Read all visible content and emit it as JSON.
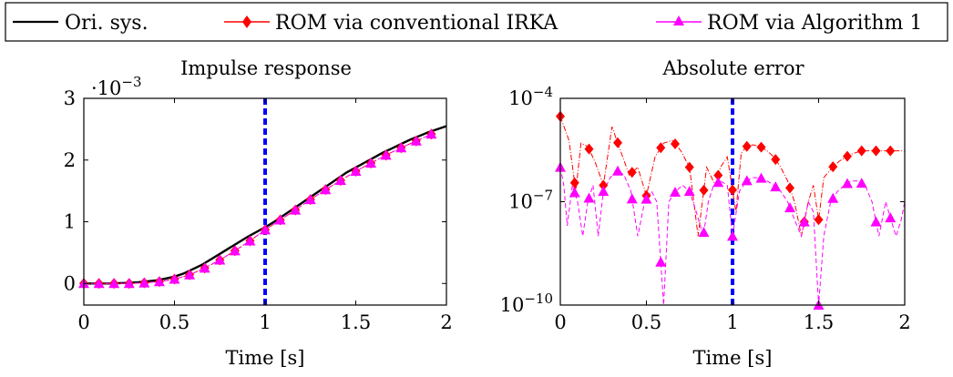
{
  "legend": {
    "entries": [
      {
        "label": "Ori. sys.",
        "color": "#000000",
        "marker": "none",
        "style": "solid"
      },
      {
        "label": "ROM via conventional IRKA",
        "color": "#ff0000",
        "marker": "diamond",
        "style": "dashdot"
      },
      {
        "label": "ROM via Algorithm 1",
        "color": "#ff00ff",
        "marker": "triangle",
        "style": "dashed"
      }
    ]
  },
  "chart_data": [
    {
      "type": "line",
      "title": "Impulse response",
      "xlabel": "Time [s]",
      "ylabel": "",
      "y_scale_factor": "·10",
      "y_scale_exponent": "−3",
      "xlim": [
        0,
        2
      ],
      "ylim": [
        -0.35,
        3
      ],
      "xticks": [
        0,
        0.5,
        1,
        1.5,
        2
      ],
      "xtick_labels": [
        "0",
        "0.5",
        "1",
        "1.5",
        "2"
      ],
      "yticks": [
        0,
        1,
        2,
        3
      ],
      "ytick_labels": [
        "0",
        "1",
        "2",
        "3"
      ],
      "vline": {
        "x": 1,
        "color": "#0000ff"
      },
      "series": [
        {
          "name": "Ori. sys.",
          "color": "#000000",
          "x": [
            0,
            0.05,
            0.1,
            0.15,
            0.2,
            0.25,
            0.3,
            0.35,
            0.4,
            0.45,
            0.5,
            0.55,
            0.6,
            0.65,
            0.7,
            0.75,
            0.8,
            0.85,
            0.9,
            0.95,
            1.0,
            1.05,
            1.1,
            1.15,
            1.2,
            1.25,
            1.3,
            1.35,
            1.4,
            1.45,
            1.5,
            1.55,
            1.6,
            1.65,
            1.7,
            1.75,
            1.8,
            1.85,
            1.9,
            1.95,
            2.0
          ],
          "y": [
            0,
            0,
            0,
            0,
            0.005,
            0.01,
            0.02,
            0.035,
            0.05,
            0.08,
            0.11,
            0.16,
            0.23,
            0.3,
            0.39,
            0.48,
            0.57,
            0.66,
            0.75,
            0.83,
            0.91,
            1.0,
            1.1,
            1.2,
            1.3,
            1.4,
            1.5,
            1.6,
            1.7,
            1.8,
            1.88,
            1.96,
            2.04,
            2.12,
            2.19,
            2.26,
            2.33,
            2.39,
            2.45,
            2.5,
            2.55
          ]
        },
        {
          "name": "ROM via conventional IRKA",
          "color": "#ff0000",
          "x": [
            0,
            0.0833,
            0.1667,
            0.25,
            0.3333,
            0.4167,
            0.5,
            0.5833,
            0.6667,
            0.75,
            0.8333,
            0.9167,
            1.0,
            1.0833,
            1.1667,
            1.25,
            1.3333,
            1.4167,
            1.5,
            1.5833,
            1.6667,
            1.75,
            1.8333,
            1.9167
          ],
          "y": [
            0,
            0,
            0,
            0,
            0.01,
            0.03,
            0.07,
            0.14,
            0.25,
            0.38,
            0.53,
            0.69,
            0.87,
            1.03,
            1.19,
            1.36,
            1.52,
            1.67,
            1.82,
            1.95,
            2.08,
            2.2,
            2.31,
            2.42
          ]
        },
        {
          "name": "ROM via Algorithm 1",
          "color": "#ff00ff",
          "x": [
            0,
            0.0833,
            0.1667,
            0.25,
            0.3333,
            0.4167,
            0.5,
            0.5833,
            0.6667,
            0.75,
            0.8333,
            0.9167,
            1.0,
            1.0833,
            1.1667,
            1.25,
            1.3333,
            1.4167,
            1.5,
            1.5833,
            1.6667,
            1.75,
            1.8333,
            1.9167
          ],
          "y": [
            0,
            0,
            0,
            0,
            0.01,
            0.03,
            0.07,
            0.14,
            0.25,
            0.38,
            0.53,
            0.69,
            0.87,
            1.03,
            1.19,
            1.36,
            1.52,
            1.67,
            1.82,
            1.95,
            2.08,
            2.2,
            2.31,
            2.42
          ]
        }
      ]
    },
    {
      "type": "line",
      "title": "Absolute error",
      "xlabel": "Time [s]",
      "ylabel": "",
      "y_scale": "log",
      "xlim": [
        0,
        2
      ],
      "ylim": [
        1e-10,
        0.0001
      ],
      "xticks": [
        0,
        0.5,
        1,
        1.5,
        2
      ],
      "xtick_labels": [
        "0",
        "0.5",
        "1",
        "1.5",
        "2"
      ],
      "yticks": [
        1e-10,
        1e-07,
        0.0001
      ],
      "ytick_bases": [
        "10",
        "10",
        "10"
      ],
      "ytick_exponents": [
        "−10",
        "−7",
        "−4"
      ],
      "vline": {
        "x": 1,
        "color": "#0000ff"
      },
      "series": [
        {
          "name": "ROM via conventional IRKA",
          "color": "#ff0000",
          "x": [
            0,
            0.05,
            0.09,
            0.12,
            0.16,
            0.2,
            0.25,
            0.3,
            0.35,
            0.4,
            0.45,
            0.5,
            0.55,
            0.6,
            0.65,
            0.7,
            0.75,
            0.8,
            0.85,
            0.9,
            0.93,
            0.97,
            1.02,
            1.05,
            1.08,
            1.12,
            1.16,
            1.2,
            1.24,
            1.28,
            1.32,
            1.36,
            1.4,
            1.44,
            1.47,
            1.5,
            1.53,
            1.58,
            1.62,
            1.66,
            1.7,
            1.75,
            1.8,
            1.85,
            1.9,
            1.95,
            2.0
          ],
          "y": [
            3e-05,
            6e-06,
            2e-07,
            5e-06,
            4e-06,
            1.5e-06,
            3e-07,
            1.5e-05,
            3e-06,
            6e-07,
            1e-06,
            1.5e-07,
            2e-06,
            5e-06,
            6e-06,
            3e-06,
            1e-06,
            1e-08,
            1e-06,
            3e-07,
            1e-06,
            2e-06,
            5e-08,
            2.5e-06,
            4e-06,
            4.5e-06,
            4e-06,
            3e-06,
            2e-06,
            1e-06,
            4e-07,
            1e-07,
            1e-08,
            1e-07,
            3e-07,
            3e-08,
            5e-07,
            1e-06,
            1.5e-06,
            2e-06,
            2.5e-06,
            3e-06,
            3e-06,
            3e-06,
            3e-06,
            3e-06,
            3e-06
          ]
        },
        {
          "name": "ROM via Algorithm 1",
          "color": "#ff00ff",
          "x": [
            0,
            0.02,
            0.04,
            0.07,
            0.1,
            0.13,
            0.16,
            0.19,
            0.22,
            0.25,
            0.29,
            0.33,
            0.37,
            0.41,
            0.45,
            0.49,
            0.53,
            0.56,
            0.6,
            0.63,
            0.67,
            0.71,
            0.75,
            0.79,
            0.83,
            0.86,
            0.89,
            0.93,
            0.97,
            1.0,
            1.04,
            1.08,
            1.12,
            1.16,
            1.2,
            1.24,
            1.28,
            1.32,
            1.36,
            1.4,
            1.44,
            1.47,
            1.5,
            1.53,
            1.57,
            1.61,
            1.65,
            1.69,
            1.73,
            1.77,
            1.81,
            1.85,
            1.89,
            1.92,
            1.95,
            1.98,
            2.0
          ],
          "y": [
            1e-06,
            3e-07,
            2e-08,
            3e-07,
            1e-07,
            1e-08,
            1e-07,
            3e-07,
            1e-08,
            2e-07,
            5e-07,
            8e-07,
            6e-07,
            2e-07,
            1e-08,
            1e-07,
            2e-07,
            1e-07,
            1e-10,
            1e-07,
            2e-07,
            3e-07,
            2e-07,
            5e-08,
            1e-08,
            1e-07,
            3e-07,
            4e-07,
            3e-07,
            1e-08,
            2e-07,
            4e-07,
            5e-07,
            5e-07,
            4e-07,
            3e-07,
            2e-07,
            1e-07,
            3e-08,
            1e-08,
            1e-07,
            5e-08,
            1e-10,
            1e-08,
            1e-07,
            2e-07,
            3e-07,
            4e-07,
            4e-07,
            3e-07,
            1e-07,
            1e-08,
            1e-07,
            3e-08,
            1e-08,
            3e-08,
            1e-07
          ]
        }
      ]
    }
  ]
}
